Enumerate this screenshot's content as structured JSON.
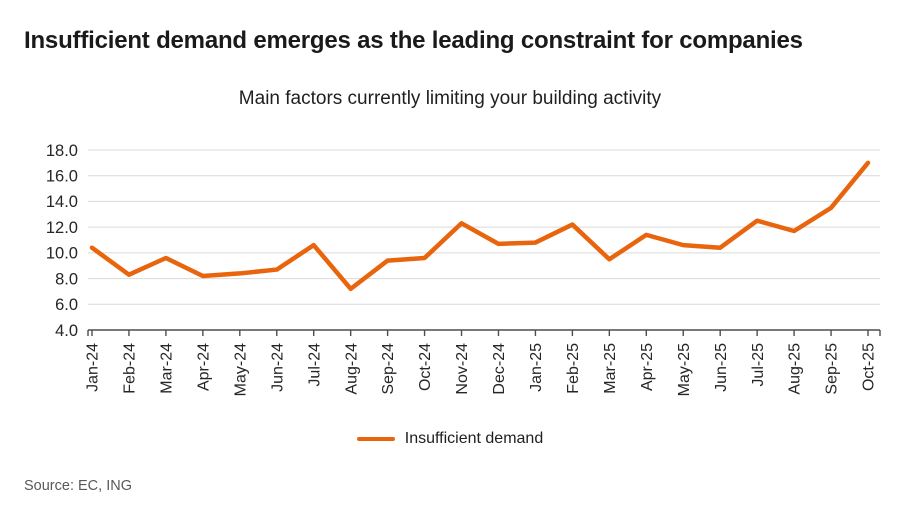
{
  "page": {
    "title": "Insufficient demand emerges as the leading constraint for companies",
    "source": "Source: EC, ING"
  },
  "chart_data": {
    "type": "line",
    "title": "Main factors currently limiting your building activity",
    "categories": [
      "Jan-24",
      "Feb-24",
      "Mar-24",
      "Apr-24",
      "May-24",
      "Jun-24",
      "Jul-24",
      "Aug-24",
      "Sep-24",
      "Oct-24",
      "Nov-24",
      "Dec-24",
      "Jan-25",
      "Feb-25",
      "Mar-25",
      "Apr-25",
      "May-25",
      "Jun-25",
      "Jul-25",
      "Aug-25",
      "Sep-25",
      "Oct-25"
    ],
    "series": [
      {
        "name": "Insufficient demand",
        "color": "#E8650D",
        "values": [
          10.4,
          8.3,
          9.6,
          8.2,
          8.4,
          8.7,
          10.6,
          7.2,
          9.4,
          9.6,
          12.3,
          10.7,
          10.8,
          12.2,
          9.5,
          11.4,
          10.6,
          10.4,
          12.5,
          11.7,
          13.5,
          17.0
        ]
      }
    ],
    "ylim": [
      4.0,
      18.0
    ],
    "ytick_step": 2.0,
    "ytick_labels": [
      "4.0",
      "6.0",
      "8.0",
      "10.0",
      "12.0",
      "14.0",
      "16.0",
      "18.0"
    ],
    "grid": "horizontal",
    "legend_position": "bottom",
    "xlabel": "",
    "ylabel": ""
  },
  "colors": {
    "accent_orange": "#E8650D",
    "gridline": "#D9D9D9",
    "axis": "#4D4D4D",
    "tick_text": "#262626",
    "text_dark": "#1A1A1A",
    "text_source": "#595959"
  }
}
